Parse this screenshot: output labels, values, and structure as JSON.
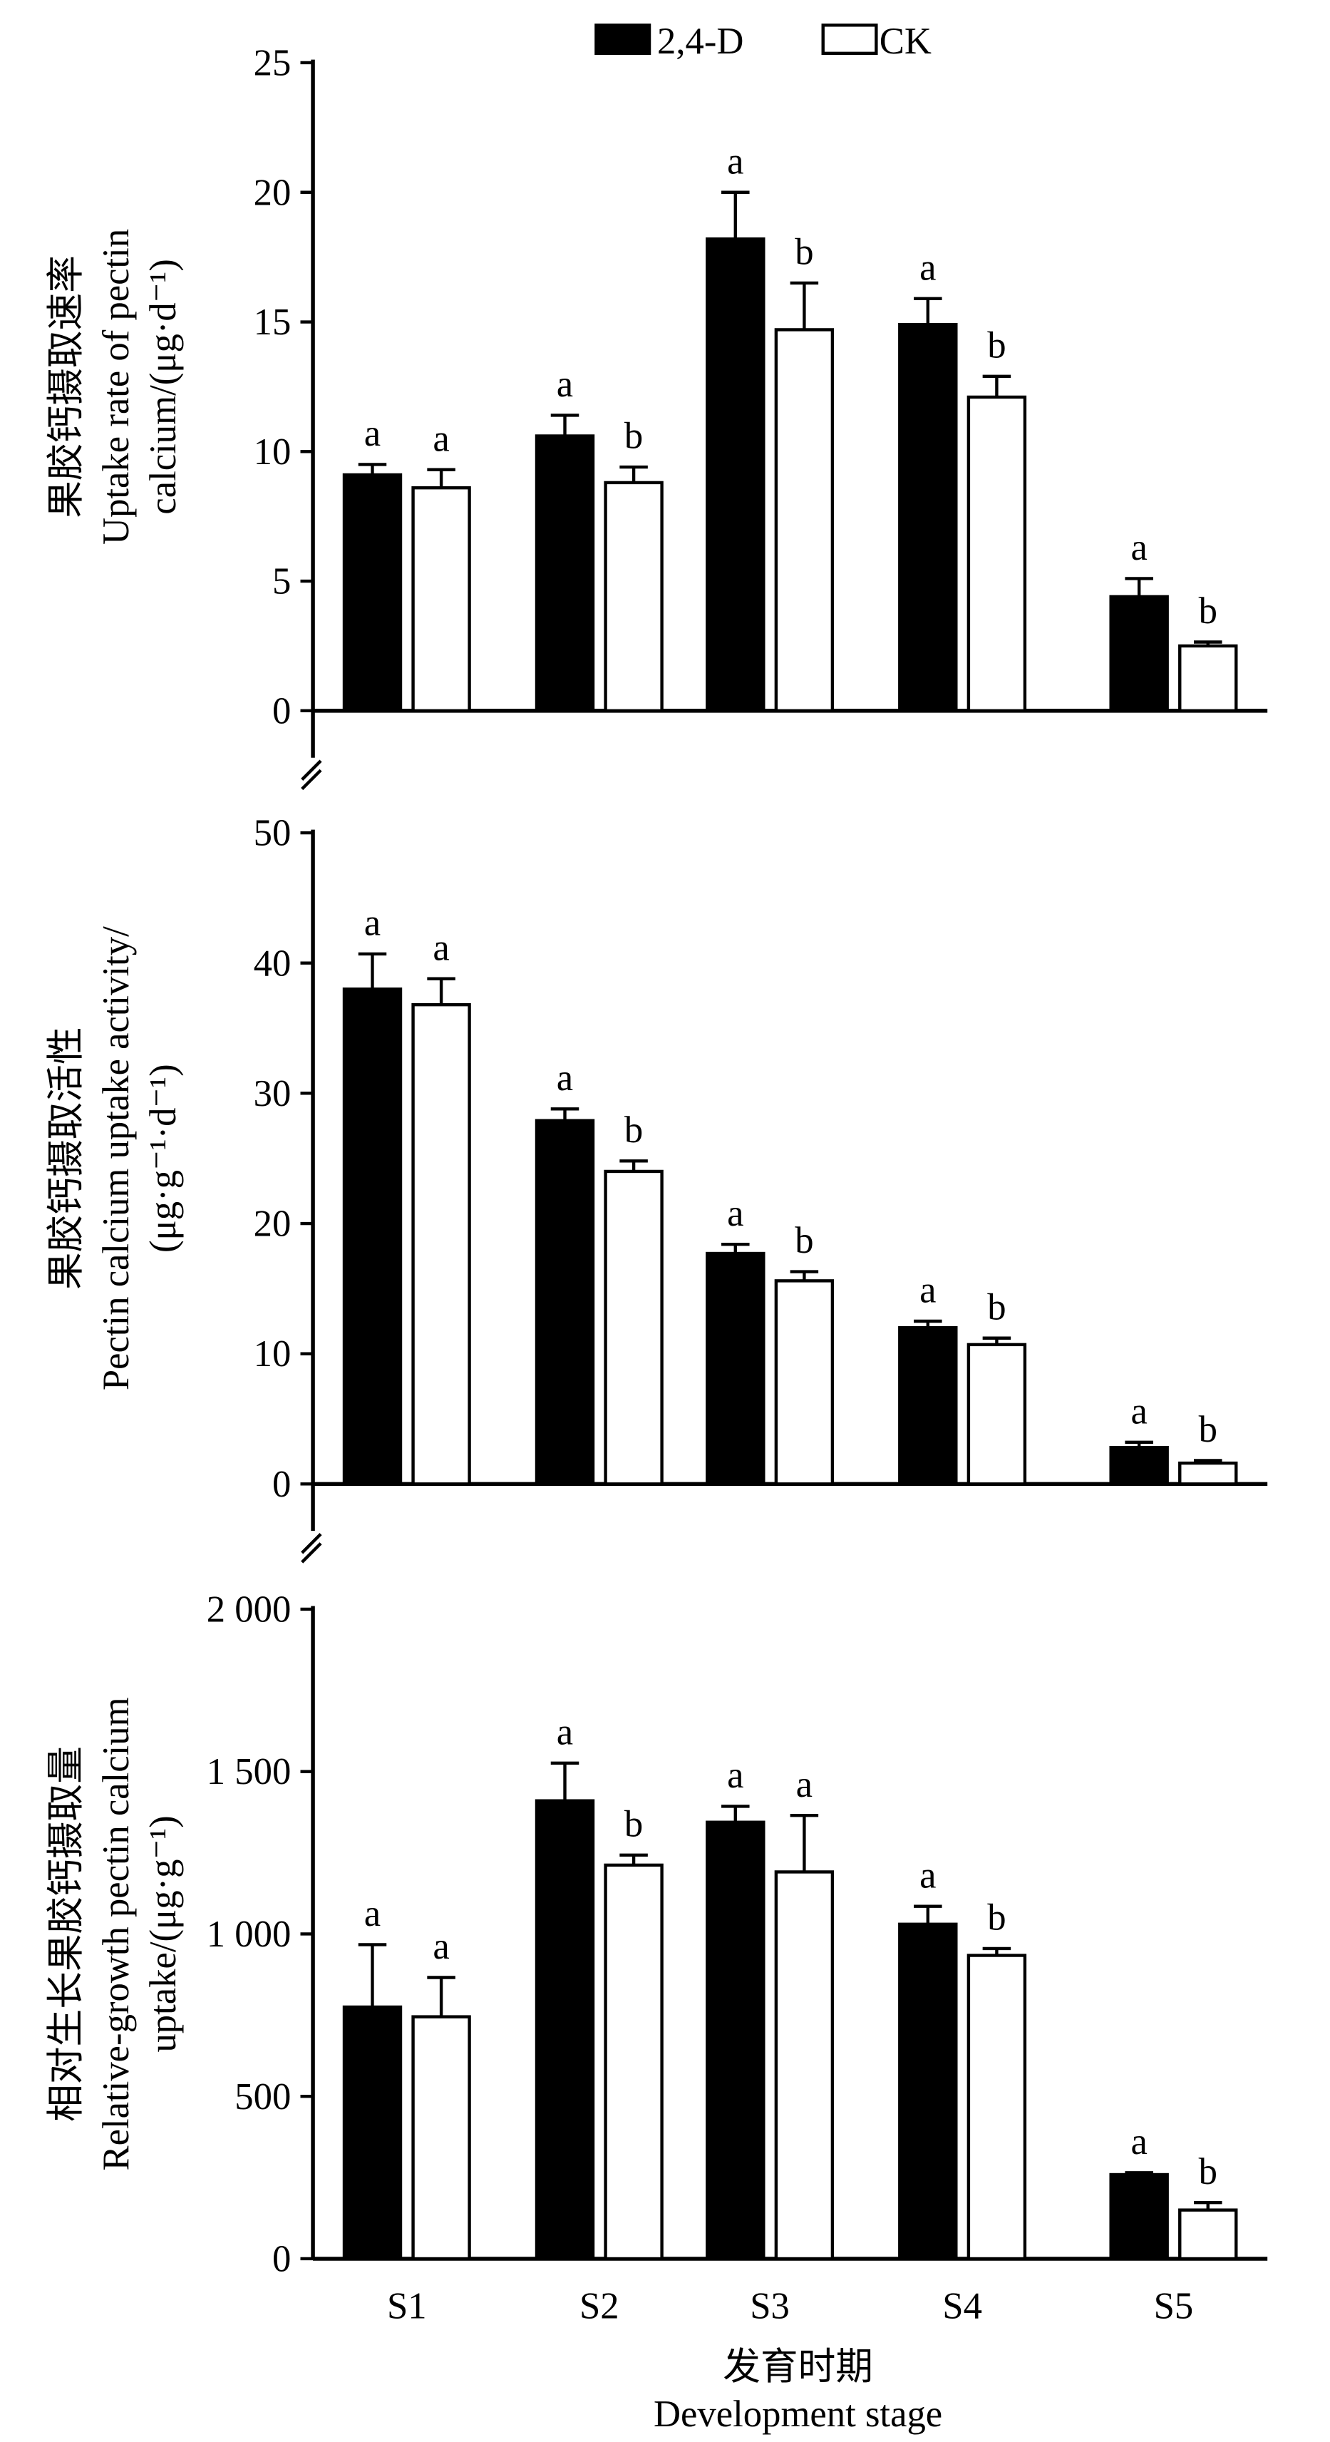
{
  "legend": {
    "series_a": "2,4-D",
    "series_b": "CK"
  },
  "xaxis": {
    "label_cn": "发育时期",
    "label_en": "Development stage"
  },
  "chart_data": [
    {
      "type": "bar",
      "ylabel_cn": "果胶钙摄取速率",
      "ylabel_en_1": "Uptake rate of pectin",
      "ylabel_en_2": "calcium/(μg·d⁻¹)",
      "ylim": [
        0,
        25
      ],
      "yticks": [
        0,
        5,
        10,
        15,
        20,
        25
      ],
      "ytick_labels": [
        "0",
        "5",
        "10",
        "15",
        "20",
        "25"
      ],
      "categories": [
        "S1",
        "S2",
        "S3",
        "S4",
        "S5"
      ],
      "series": [
        {
          "name": "2,4-D",
          "values": [
            9.1,
            10.6,
            18.2,
            14.9,
            4.4
          ],
          "error_upper": [
            9.5,
            11.4,
            20.0,
            15.9,
            5.1
          ],
          "letters": [
            "a",
            "a",
            "a",
            "a",
            "a"
          ]
        },
        {
          "name": "CK",
          "values": [
            8.6,
            8.8,
            14.7,
            12.1,
            2.5
          ],
          "error_upper": [
            9.3,
            9.4,
            16.5,
            12.9,
            2.65
          ],
          "letters": [
            "a",
            "b",
            "b",
            "b",
            "b"
          ]
        }
      ]
    },
    {
      "type": "bar",
      "ylabel_cn": "果胶钙摄取活性",
      "ylabel_en_1": "Pectin calcium uptake activity/",
      "ylabel_en_2": "(μg·g⁻¹·d⁻¹)",
      "ylim": [
        0,
        50
      ],
      "yticks": [
        0,
        10,
        20,
        30,
        40,
        50
      ],
      "ytick_labels": [
        "0",
        "10",
        "20",
        "30",
        "40",
        "50"
      ],
      "categories": [
        "S1",
        "S2",
        "S3",
        "S4",
        "S5"
      ],
      "series": [
        {
          "name": "2,4-D",
          "values": [
            38.0,
            27.9,
            17.7,
            12.0,
            2.8
          ],
          "error_upper": [
            40.7,
            28.8,
            18.4,
            12.5,
            3.2
          ],
          "letters": [
            "a",
            "a",
            "a",
            "a",
            "a"
          ]
        },
        {
          "name": "CK",
          "values": [
            36.8,
            24.0,
            15.6,
            10.7,
            1.6
          ],
          "error_upper": [
            38.8,
            24.8,
            16.3,
            11.2,
            1.8
          ],
          "letters": [
            "a",
            "b",
            "b",
            "b",
            "b"
          ]
        }
      ]
    },
    {
      "type": "bar",
      "ylabel_cn": "相对生长果胶钙摄取量",
      "ylabel_en_1": "Relative-growth pectin calcium",
      "ylabel_en_2": "uptake/(μg·g⁻¹)",
      "ylim": [
        0,
        2000
      ],
      "yticks": [
        0,
        500,
        1000,
        1500,
        2000
      ],
      "ytick_labels": [
        "0",
        "500",
        "1 000",
        "1 500",
        "2 000"
      ],
      "categories": [
        "S1",
        "S2",
        "S3",
        "S4",
        "S5"
      ],
      "series": [
        {
          "name": "2,4-D",
          "values": [
            775,
            1410,
            1344,
            1030,
            259
          ],
          "error_upper": [
            967,
            1526,
            1393,
            1085,
            265
          ],
          "letters": [
            "a",
            "a",
            "a",
            "a",
            "a"
          ]
        },
        {
          "name": "CK",
          "values": [
            745,
            1212,
            1191,
            934,
            150
          ],
          "error_upper": [
            866,
            1243,
            1365,
            955,
            173
          ],
          "letters": [
            "a",
            "b",
            "a",
            "b",
            "b"
          ]
        }
      ]
    }
  ]
}
